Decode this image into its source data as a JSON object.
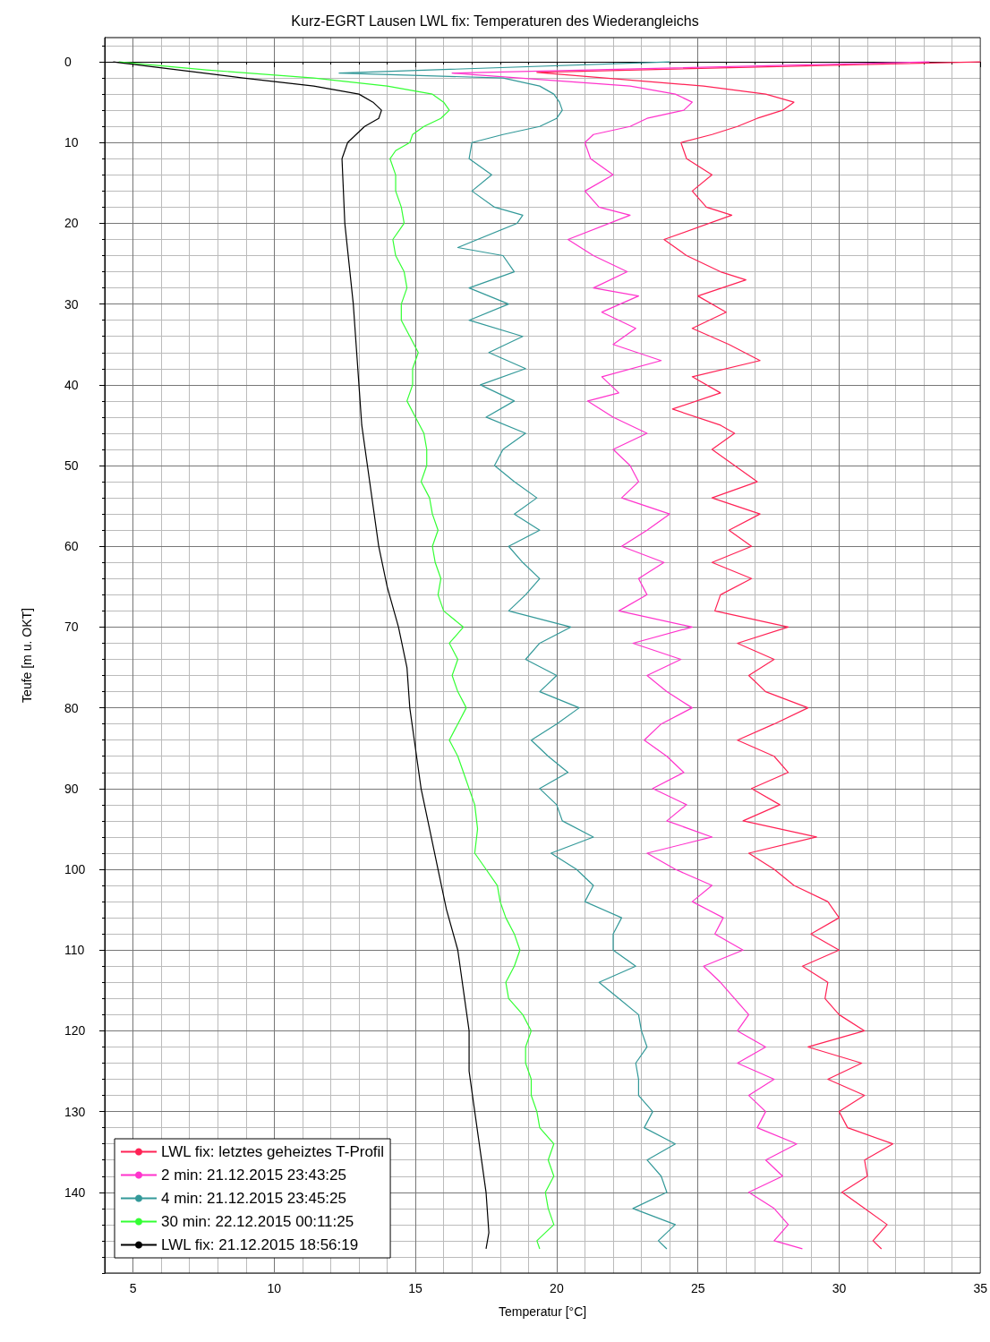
{
  "chart_data": {
    "type": "line",
    "title": "Kurz-EGRT Lausen LWL fix: Temperaturen des Wiederangleichs",
    "xlabel": "Temperatur [°C]",
    "ylabel": "Teufe [m u. OKT]",
    "xlim": [
      4,
      35
    ],
    "xticks": [
      5,
      10,
      15,
      20,
      25,
      30,
      35
    ],
    "ylim": [
      150,
      -3
    ],
    "yticks": [
      0,
      10,
      20,
      30,
      40,
      50,
      60,
      70,
      80,
      90,
      100,
      110,
      120,
      130,
      140
    ],
    "grid": true,
    "legend": "bottom left",
    "marker": "none",
    "line_style": "solid",
    "series": [
      {
        "name": "LWL fix: letztes geheiztes T-Profil",
        "color": "#ff2255",
        "x": [
          35.0,
          19.3,
          25.2,
          27.4,
          28.4,
          28.0,
          27.1,
          26.4,
          25.5,
          24.4,
          24.6,
          25.5,
          24.8,
          25.3,
          26.2,
          23.8,
          24.6,
          25.8,
          26.7,
          25.0,
          26.0,
          24.8,
          26.1,
          27.2,
          24.8,
          25.8,
          24.1,
          25.8,
          26.3,
          25.5,
          26.3,
          27.1,
          25.5,
          27.2,
          26.1,
          26.9,
          25.5,
          26.9,
          25.8,
          25.6,
          28.2,
          26.4,
          27.7,
          26.8,
          27.4,
          28.9,
          27.7,
          26.4,
          27.7,
          28.2,
          26.9,
          27.9,
          26.6,
          29.2,
          26.8,
          27.7,
          28.4,
          29.6,
          30.0,
          29.0,
          30.0,
          28.7,
          29.6,
          29.5,
          30.0,
          30.9,
          28.9,
          30.8,
          29.6,
          30.9,
          30.0,
          30.3,
          31.9,
          30.9,
          31.0,
          30.1,
          30.9,
          31.7,
          31.2,
          31.5
        ],
        "values": [
          0,
          1.3,
          3,
          4,
          5,
          6,
          7,
          8,
          9,
          10,
          12,
          14,
          16,
          18,
          19,
          22,
          24,
          26,
          27,
          29,
          31,
          33,
          35,
          37,
          39,
          41,
          43,
          45,
          46,
          48,
          50,
          52,
          54,
          56,
          58,
          60,
          62,
          64,
          66,
          68,
          70,
          72,
          74,
          76,
          78,
          80,
          82,
          84,
          86,
          88,
          90,
          92,
          94,
          96,
          98,
          100,
          102,
          104,
          106,
          108,
          110,
          112,
          114,
          116,
          118,
          120,
          122,
          124,
          126,
          128,
          130,
          132,
          134,
          136,
          138,
          140,
          142,
          144,
          146,
          147
        ]
      },
      {
        "name": "2 min: 21.12.2015 23:43:25",
        "color": "#ff33cc",
        "x": [
          33.2,
          16.3,
          22.6,
          24.2,
          24.8,
          24.5,
          23.2,
          22.6,
          21.3,
          21.0,
          21.2,
          22.0,
          21.0,
          21.5,
          22.6,
          20.4,
          21.3,
          22.5,
          21.3,
          22.9,
          21.6,
          22.8,
          22.0,
          23.7,
          21.6,
          22.2,
          21.1,
          22.0,
          23.2,
          22.0,
          22.6,
          22.9,
          22.3,
          24.0,
          23.2,
          22.3,
          23.8,
          22.9,
          23.2,
          22.2,
          24.8,
          22.7,
          24.4,
          23.2,
          23.9,
          24.8,
          23.7,
          23.1,
          23.9,
          24.5,
          23.4,
          24.6,
          23.9,
          25.5,
          23.2,
          24.2,
          25.5,
          24.8,
          25.9,
          25.6,
          26.6,
          25.2,
          25.8,
          26.3,
          26.8,
          26.4,
          27.4,
          26.4,
          27.7,
          26.8,
          27.4,
          27.1,
          28.5,
          27.4,
          28.0,
          26.8,
          27.7,
          28.2,
          27.7,
          28.7
        ],
        "values": [
          0,
          1.4,
          3,
          4,
          5,
          6,
          7,
          8,
          9,
          10,
          12,
          14,
          16,
          18,
          19,
          22,
          24,
          26,
          28,
          29,
          31,
          33,
          35,
          37,
          39,
          41,
          42,
          44,
          46,
          48,
          50,
          52,
          54,
          56,
          58,
          60,
          62,
          64,
          66,
          68,
          70,
          72,
          74,
          76,
          78,
          80,
          82,
          84,
          86,
          88,
          90,
          92,
          94,
          96,
          98,
          100,
          102,
          104,
          106,
          108,
          110,
          112,
          114,
          116,
          118,
          120,
          122,
          124,
          126,
          128,
          130,
          132,
          134,
          136,
          138,
          140,
          142,
          144,
          146,
          147
        ]
      },
      {
        "name": "4 min: 21.12.2015 23:45:25",
        "color": "#339999",
        "x": [
          24.0,
          12.3,
          18.1,
          19.4,
          19.9,
          20.1,
          20.2,
          20.0,
          19.4,
          18.1,
          17.0,
          16.9,
          17.7,
          17.0,
          17.8,
          18.8,
          18.6,
          16.5,
          18.1,
          18.5,
          16.9,
          18.3,
          16.9,
          18.8,
          17.6,
          18.9,
          17.3,
          18.5,
          17.5,
          18.9,
          18.1,
          17.8,
          18.5,
          19.3,
          18.5,
          19.4,
          18.3,
          18.8,
          19.4,
          18.9,
          18.3,
          20.5,
          19.4,
          18.9,
          20.0,
          19.4,
          20.8,
          20.0,
          19.1,
          19.7,
          20.4,
          19.4,
          20.0,
          20.2,
          21.3,
          19.8,
          20.7,
          21.3,
          21.0,
          22.3,
          22.0,
          22.0,
          22.8,
          21.5,
          22.2,
          22.9,
          23.0,
          23.2,
          22.8,
          22.9,
          22.9,
          23.4,
          23.1,
          24.2,
          23.2,
          23.7,
          23.9,
          22.7,
          24.2,
          23.6,
          23.9
        ],
        "values": [
          0,
          1.4,
          2,
          3,
          4,
          5,
          6,
          7,
          8,
          9,
          10,
          12,
          14,
          16,
          18,
          19,
          20,
          23,
          24,
          26,
          28,
          30,
          32,
          34,
          36,
          38,
          40,
          42,
          44,
          46,
          48,
          50,
          52,
          54,
          56,
          58,
          60,
          62,
          64,
          66,
          68,
          70,
          72,
          74,
          76,
          78,
          80,
          82,
          84,
          86,
          88,
          90,
          92,
          94,
          96,
          98,
          100,
          102,
          104,
          106,
          108,
          110,
          112,
          114,
          116,
          118,
          120,
          122,
          124,
          126,
          128,
          130,
          132,
          134,
          136,
          138,
          140,
          142,
          144,
          146,
          147
        ]
      },
      {
        "name": "30 min: 22.12.2015 00:11:25",
        "color": "#33ff33",
        "x": [
          4.5,
          7.6,
          11.4,
          14.0,
          15.6,
          16.0,
          16.2,
          15.9,
          15.3,
          14.9,
          14.8,
          14.3,
          14.1,
          14.3,
          14.3,
          14.5,
          14.6,
          14.2,
          14.3,
          14.6,
          14.7,
          14.5,
          14.5,
          14.8,
          15.1,
          14.9,
          14.9,
          14.7,
          15.0,
          15.3,
          15.4,
          15.4,
          15.2,
          15.5,
          15.6,
          15.8,
          15.6,
          15.7,
          15.9,
          15.8,
          16.0,
          16.7,
          16.2,
          16.5,
          16.3,
          16.5,
          16.8,
          16.5,
          16.2,
          16.5,
          16.7,
          16.9,
          17.1,
          17.2,
          17.1,
          17.5,
          17.9,
          18.0,
          18.2,
          18.5,
          18.7,
          18.5,
          18.2,
          18.3,
          18.8,
          19.1,
          18.9,
          18.9,
          19.1,
          19.1,
          19.3,
          19.4,
          19.9,
          19.7,
          19.9,
          19.6,
          19.7,
          19.9,
          19.3,
          19.4
        ],
        "values": [
          0,
          1,
          2,
          3,
          4,
          5,
          6,
          7,
          8,
          9,
          10,
          11,
          12,
          14,
          16,
          18,
          20,
          22,
          24,
          26,
          28,
          30,
          32,
          34,
          36,
          38,
          40,
          42,
          44,
          46,
          48,
          50,
          52,
          54,
          56,
          58,
          60,
          62,
          64,
          66,
          68,
          70,
          72,
          74,
          76,
          78,
          80,
          82,
          84,
          86,
          88,
          90,
          92,
          95,
          98,
          100,
          102,
          104,
          106,
          108,
          110,
          112,
          114,
          116,
          118,
          120,
          122,
          124,
          126,
          128,
          130,
          132,
          134,
          136,
          138,
          140,
          142,
          144,
          146,
          147
        ]
      },
      {
        "name": "LWL fix: 21.12.2015 18:56:19",
        "color": "#000000",
        "x": [
          4.3,
          8.9,
          11.4,
          13.0,
          13.5,
          13.8,
          13.7,
          13.2,
          12.9,
          12.6,
          12.5,
          12.4,
          12.5,
          12.8,
          12.9,
          13.0,
          13.1,
          13.3,
          13.5,
          13.7,
          14.0,
          14.4,
          14.7,
          14.8,
          15.0,
          15.2,
          15.5,
          15.8,
          16.1,
          16.5,
          16.7,
          16.9,
          16.9,
          17.1,
          17.3,
          17.5,
          17.6,
          17.5
        ],
        "values": [
          0,
          2,
          3,
          4,
          5,
          6,
          7,
          8,
          9,
          10,
          11,
          12,
          20,
          30,
          35,
          40,
          45,
          50,
          55,
          60,
          65,
          70,
          75,
          80,
          85,
          90,
          95,
          100,
          105,
          110,
          115,
          120,
          125,
          130,
          135,
          140,
          145,
          147
        ]
      }
    ]
  }
}
